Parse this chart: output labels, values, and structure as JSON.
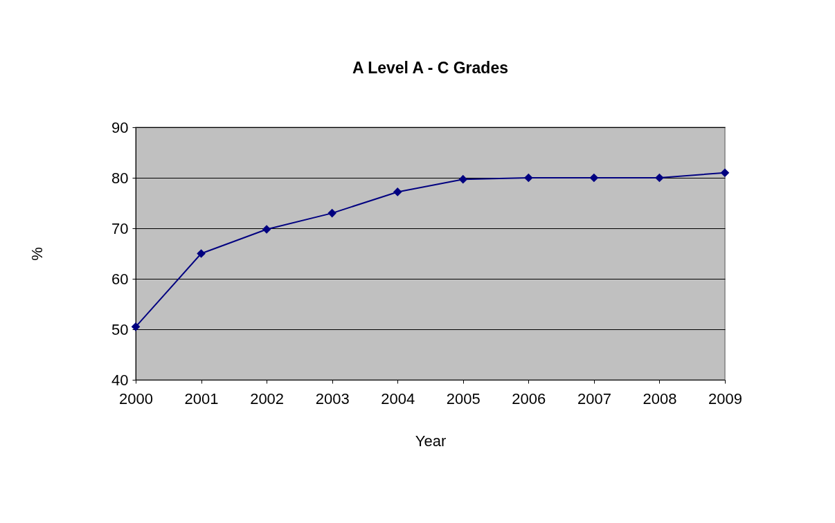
{
  "chart_data": {
    "type": "line",
    "title": "A Level A - C Grades",
    "xlabel": "Year",
    "ylabel": "%",
    "x": [
      2000,
      2001,
      2002,
      2003,
      2004,
      2005,
      2006,
      2007,
      2008,
      2009
    ],
    "series": [
      {
        "color": "#000080",
        "values": [
          50.5,
          65,
          69.8,
          73,
          77.2,
          79.7,
          80,
          80,
          80,
          81
        ]
      }
    ],
    "xlim": [
      2000,
      2009
    ],
    "xticks": [
      2000,
      2001,
      2002,
      2003,
      2004,
      2005,
      2006,
      2007,
      2008,
      2009
    ],
    "ylim": [
      40,
      90
    ],
    "yticks": [
      40,
      50,
      60,
      70,
      80,
      90
    ],
    "grid": "y",
    "marker": "diamond",
    "line_style": "solid"
  }
}
